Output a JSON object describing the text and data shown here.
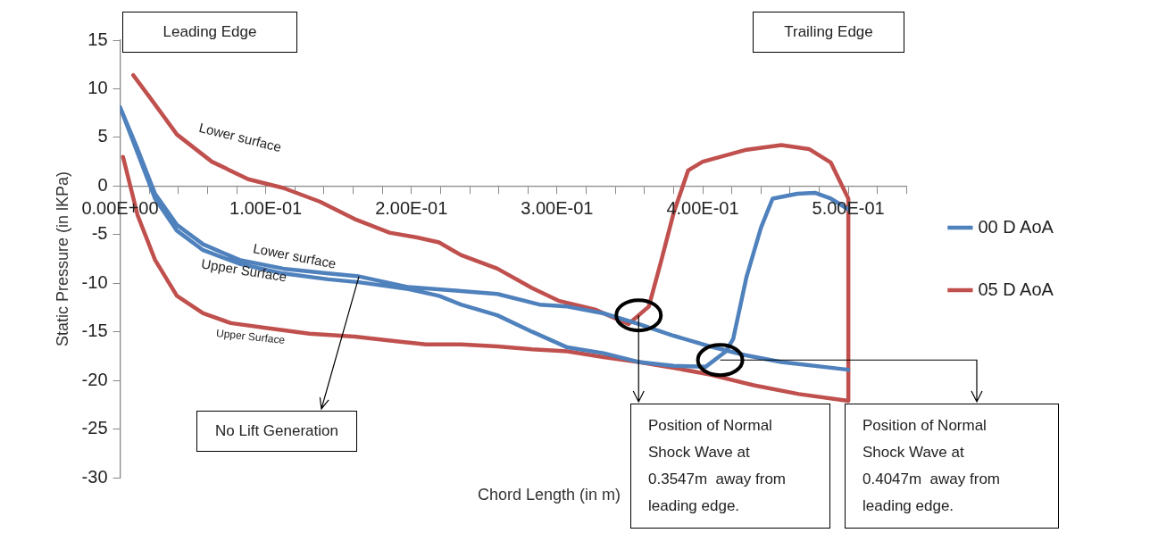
{
  "chart_data": {
    "type": "line",
    "xlabel": "Chord Length (in m)",
    "ylabel": "Static Pressure (in lKPa)",
    "xlim": [
      0,
      0.54
    ],
    "ylim": [
      -30,
      15
    ],
    "xticks": [
      {
        "value": 0,
        "label": "0.00E+00"
      },
      {
        "value": 0.02,
        "label": null
      },
      {
        "value": 0.04,
        "label": null
      },
      {
        "value": 0.06,
        "label": null
      },
      {
        "value": 0.08,
        "label": null
      },
      {
        "value": 0.1,
        "label": "1.00E-01"
      },
      {
        "value": 0.12,
        "label": null
      },
      {
        "value": 0.14,
        "label": null
      },
      {
        "value": 0.16,
        "label": null
      },
      {
        "value": 0.18,
        "label": null
      },
      {
        "value": 0.2,
        "label": "2.00E-01"
      },
      {
        "value": 0.22,
        "label": null
      },
      {
        "value": 0.24,
        "label": null
      },
      {
        "value": 0.26,
        "label": null
      },
      {
        "value": 0.28,
        "label": null
      },
      {
        "value": 0.3,
        "label": "3.00E-01"
      },
      {
        "value": 0.32,
        "label": null
      },
      {
        "value": 0.34,
        "label": null
      },
      {
        "value": 0.36,
        "label": null
      },
      {
        "value": 0.38,
        "label": null
      },
      {
        "value": 0.4,
        "label": "4.00E-01"
      },
      {
        "value": 0.42,
        "label": null
      },
      {
        "value": 0.44,
        "label": null
      },
      {
        "value": 0.46,
        "label": null
      },
      {
        "value": 0.48,
        "label": null
      },
      {
        "value": 0.5,
        "label": "5.00E-01"
      },
      {
        "value": 0.52,
        "label": null
      },
      {
        "value": 0.54,
        "label": null
      }
    ],
    "yticks": [
      -30,
      -25,
      -20,
      -15,
      -10,
      -5,
      0,
      5,
      10,
      15
    ],
    "legend": "right",
    "marker": "none",
    "series": [
      {
        "name": "00 D AoA",
        "color": "#4f81bd",
        "x": [
          0.5,
          0.454,
          0.429,
          0.405,
          0.38,
          0.356,
          0.332,
          0.307,
          0.288,
          0.259,
          0.234,
          0.198,
          0.164,
          0.143,
          0.112,
          0.082,
          0.057,
          0.039,
          0.024,
          0.012,
          0,
          0.012,
          0.024,
          0.039,
          0.057,
          0.082,
          0.112,
          0.143,
          0.164,
          0.198,
          0.219,
          0.234,
          0.259,
          0.283,
          0.307,
          0.332,
          0.356,
          0.38,
          0.402,
          0.416,
          0.421,
          0.43,
          0.44,
          0.448,
          0.465,
          0.477,
          0.488,
          0.5
        ],
        "values": [
          -18.9,
          -18.1,
          -17.4,
          -16.5,
          -15.4,
          -14.2,
          -13.1,
          -12.4,
          -12.2,
          -11.1,
          -10.8,
          -10.4,
          -9.3,
          -9.0,
          -8.5,
          -7.6,
          -6.0,
          -4.0,
          -0.8,
          3.8,
          8.1,
          3.4,
          -1.3,
          -4.6,
          -6.6,
          -8.0,
          -9.0,
          -9.6,
          -9.9,
          -10.6,
          -11.3,
          -12.2,
          -13.3,
          -15.0,
          -16.6,
          -17.2,
          -18.1,
          -18.5,
          -18.6,
          -17.0,
          -15.7,
          -9.4,
          -4.3,
          -1.3,
          -0.8,
          -0.7,
          -1.3,
          -2.4
        ]
      },
      {
        "name": "05 D AoA",
        "color": "#c0504d",
        "x": [
          0.009,
          0.021,
          0.039,
          0.063,
          0.088,
          0.112,
          0.137,
          0.161,
          0.185,
          0.204,
          0.219,
          0.234,
          0.259,
          0.283,
          0.301,
          0.326,
          0.349,
          0.363,
          0.371,
          0.38,
          0.39,
          0.4,
          0.429,
          0.454,
          0.473,
          0.488,
          0.5,
          0.5,
          0.466,
          0.435,
          0.405,
          0.38,
          0.356,
          0.332,
          0.307,
          0.283,
          0.259,
          0.234,
          0.21,
          0.191,
          0.161,
          0.13,
          0.1,
          0.076,
          0.057,
          0.039,
          0.024,
          0.012,
          0.002
        ],
        "values": [
          11.4,
          9.0,
          5.3,
          2.5,
          0.7,
          -0.2,
          -1.6,
          -3.4,
          -4.8,
          -5.3,
          -5.8,
          -7.1,
          -8.5,
          -10.5,
          -11.8,
          -12.7,
          -14.2,
          -12.4,
          -8.0,
          -2.8,
          1.6,
          2.5,
          3.7,
          4.2,
          3.8,
          2.4,
          -1.3,
          -22.1,
          -21.4,
          -20.5,
          -19.4,
          -18.7,
          -18.1,
          -17.6,
          -17.0,
          -16.8,
          -16.5,
          -16.3,
          -16.3,
          -16.0,
          -15.5,
          -15.2,
          -14.6,
          -14.1,
          -13.1,
          -11.3,
          -7.6,
          -3.0,
          3.0
        ]
      }
    ],
    "annotations": [
      "Leading Edge",
      "Trailing Edge",
      "Lower surface",
      "Lower surface",
      "Upper Surface",
      "Upper Surface",
      {
        "text": "No Lift Generation",
        "x": 0.164,
        "y": -9.3
      },
      {
        "text": "Position of Normal Shock Wave at 0.3547m  away from leading edge.",
        "x": 0.356,
        "y": -13.3
      },
      {
        "text": "Position of Normal Shock Wave at 0.4047m  away from leading edge.",
        "x": 0.412,
        "y": -17.9
      }
    ]
  }
}
